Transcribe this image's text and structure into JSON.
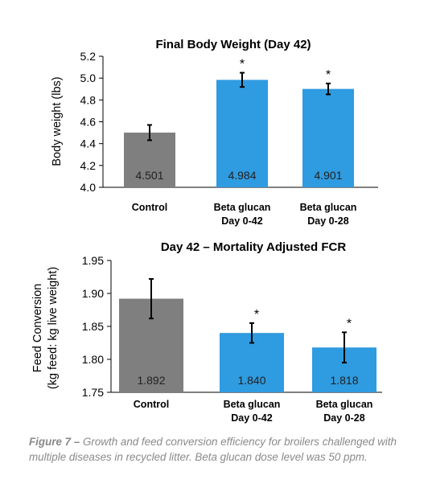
{
  "chart_data": [
    {
      "type": "bar",
      "title": "Final Body Weight (Day 42)",
      "ylabel": "Body weight (lbs)",
      "xlabel": "",
      "categories": [
        [
          "Control"
        ],
        [
          "Beta glucan",
          "Day 0-42"
        ],
        [
          "Beta glucan",
          "Day 0-28"
        ]
      ],
      "values": [
        4.501,
        4.984,
        4.901
      ],
      "value_labels": [
        "4.501",
        "4.984",
        "4.901"
      ],
      "error": [
        0.07,
        0.065,
        0.05
      ],
      "significance": [
        "",
        "*",
        "*"
      ],
      "colors": [
        "#7f7f7f",
        "#2f9be0",
        "#2f9be0"
      ],
      "ylim": [
        4.0,
        5.2
      ],
      "yticks": [
        4.0,
        4.2,
        4.4,
        4.6,
        4.8,
        5.0,
        5.2
      ],
      "ytick_labels": [
        "4.0",
        "4.2",
        "4.4",
        "4.6",
        "4.8",
        "5.0",
        "5.2"
      ],
      "grid": false,
      "legend": "none"
    },
    {
      "type": "bar",
      "title": "Day 42 – Mortality Adjusted FCR",
      "ylabel": [
        "Feed Conversion",
        "(kg feed: kg live weight)"
      ],
      "xlabel": "",
      "categories": [
        [
          "Control"
        ],
        [
          "Beta glucan",
          "Day 0-42"
        ],
        [
          "Beta glucan",
          "Day 0-28"
        ]
      ],
      "values": [
        1.892,
        1.84,
        1.818
      ],
      "value_labels": [
        "1.892",
        "1.840",
        "1.818"
      ],
      "error": [
        0.03,
        0.015,
        0.023
      ],
      "significance": [
        "",
        "*",
        "*"
      ],
      "colors": [
        "#7f7f7f",
        "#2f9be0",
        "#2f9be0"
      ],
      "ylim": [
        1.75,
        1.95
      ],
      "yticks": [
        1.75,
        1.8,
        1.85,
        1.9,
        1.95
      ],
      "ytick_labels": [
        "1.75",
        "1.80",
        "1.85",
        "1.90",
        "1.95"
      ],
      "grid": false,
      "legend": "none"
    }
  ],
  "caption": {
    "prefix": "Figure 7 –",
    "text": " Growth and feed conversion efficiency for broilers challenged with multiple diseases in recycled litter. Beta glucan dose level was 50 ppm."
  }
}
